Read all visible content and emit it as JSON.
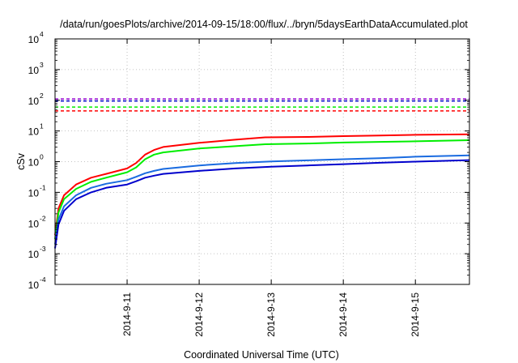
{
  "chart_data": {
    "type": "line",
    "title": "/data/run/goesPlots/archive/2014-09-15/18:00/flux/../bryn/5daysEarthDataAccumulated.plot",
    "xlabel": "Coordinated Universal Time (UTC)",
    "ylabel": "cSv",
    "y_scale": "log",
    "ylim": [
      0.0001,
      10000
    ],
    "xlim": [
      "2014-09-10 00:00",
      "2014-09-15 18:00"
    ],
    "grid": true,
    "legend": "none",
    "x_ticks": [
      "2014-9-11",
      "2014-9-12",
      "2014-9-13",
      "2014-9-14",
      "2014-9-15"
    ],
    "y_ticks": [
      {
        "base": "10",
        "exp": "-4",
        "value": 0.0001
      },
      {
        "base": "10",
        "exp": "-3",
        "value": 0.001
      },
      {
        "base": "10",
        "exp": "-2",
        "value": 0.01
      },
      {
        "base": "10",
        "exp": "-1",
        "value": 0.1
      },
      {
        "base": "10",
        "exp": "0",
        "value": 1
      },
      {
        "base": "10",
        "exp": "1",
        "value": 10
      },
      {
        "base": "10",
        "exp": "2",
        "value": 100
      },
      {
        "base": "10",
        "exp": "3",
        "value": 1000
      },
      {
        "base": "10",
        "exp": "4",
        "value": 10000
      }
    ],
    "series": [
      {
        "color": "#ff0000",
        "style": "solid",
        "points": [
          [
            "2014-09-10 00:00",
            0.004
          ],
          [
            "2014-09-10 01:10",
            0.03
          ],
          [
            "2014-09-10 03:00",
            0.08
          ],
          [
            "2014-09-10 07:00",
            0.18
          ],
          [
            "2014-09-10 12:00",
            0.3
          ],
          [
            "2014-09-10 17:00",
            0.4
          ],
          [
            "2014-09-11 00:00",
            0.6
          ],
          [
            "2014-09-11 03:00",
            0.9
          ],
          [
            "2014-09-11 06:00",
            1.7
          ],
          [
            "2014-09-11 09:00",
            2.4
          ],
          [
            "2014-09-11 12:00",
            3.0
          ],
          [
            "2014-09-12 00:00",
            4.1
          ],
          [
            "2014-09-12 12:00",
            5.2
          ],
          [
            "2014-09-12 22:00",
            6.2
          ],
          [
            "2014-09-13 12:00",
            6.4
          ],
          [
            "2014-09-14 00:00",
            6.8
          ],
          [
            "2014-09-14 12:00",
            7.1
          ],
          [
            "2014-09-15 00:00",
            7.5
          ],
          [
            "2014-09-15 18:00",
            7.8
          ]
        ]
      },
      {
        "color": "#00ee00",
        "style": "solid",
        "points": [
          [
            "2014-09-10 00:00",
            0.003
          ],
          [
            "2014-09-10 01:10",
            0.022
          ],
          [
            "2014-09-10 03:00",
            0.06
          ],
          [
            "2014-09-10 07:00",
            0.13
          ],
          [
            "2014-09-10 12:00",
            0.22
          ],
          [
            "2014-09-10 17:00",
            0.3
          ],
          [
            "2014-09-11 00:00",
            0.45
          ],
          [
            "2014-09-11 03:00",
            0.65
          ],
          [
            "2014-09-11 06:00",
            1.2
          ],
          [
            "2014-09-11 09:00",
            1.7
          ],
          [
            "2014-09-11 12:00",
            2.0
          ],
          [
            "2014-09-12 00:00",
            2.7
          ],
          [
            "2014-09-12 12:00",
            3.2
          ],
          [
            "2014-09-12 22:00",
            3.7
          ],
          [
            "2014-09-13 12:00",
            3.9
          ],
          [
            "2014-09-14 00:00",
            4.2
          ],
          [
            "2014-09-14 12:00",
            4.4
          ],
          [
            "2014-09-15 00:00",
            4.6
          ],
          [
            "2014-09-15 18:00",
            5.0
          ]
        ]
      },
      {
        "color": "#1a6be0",
        "style": "solid",
        "points": [
          [
            "2014-09-10 00:00",
            0.002
          ],
          [
            "2014-09-10 01:10",
            0.013
          ],
          [
            "2014-09-10 03:00",
            0.035
          ],
          [
            "2014-09-10 07:00",
            0.08
          ],
          [
            "2014-09-10 12:00",
            0.14
          ],
          [
            "2014-09-10 17:00",
            0.19
          ],
          [
            "2014-09-11 00:00",
            0.25
          ],
          [
            "2014-09-11 03:00",
            0.32
          ],
          [
            "2014-09-11 06:00",
            0.42
          ],
          [
            "2014-09-11 09:00",
            0.5
          ],
          [
            "2014-09-11 12:00",
            0.58
          ],
          [
            "2014-09-12 00:00",
            0.75
          ],
          [
            "2014-09-12 12:00",
            0.9
          ],
          [
            "2014-09-13 00:00",
            1.02
          ],
          [
            "2014-09-13 12:00",
            1.1
          ],
          [
            "2014-09-14 00:00",
            1.2
          ],
          [
            "2014-09-14 12:00",
            1.3
          ],
          [
            "2014-09-15 00:00",
            1.45
          ],
          [
            "2014-09-15 18:00",
            1.6
          ]
        ]
      },
      {
        "color": "#0000cc",
        "style": "solid",
        "points": [
          [
            "2014-09-10 00:00",
            0.0015
          ],
          [
            "2014-09-10 01:10",
            0.009
          ],
          [
            "2014-09-10 03:00",
            0.025
          ],
          [
            "2014-09-10 07:00",
            0.06
          ],
          [
            "2014-09-10 12:00",
            0.1
          ],
          [
            "2014-09-10 17:00",
            0.14
          ],
          [
            "2014-09-11 00:00",
            0.18
          ],
          [
            "2014-09-11 03:00",
            0.23
          ],
          [
            "2014-09-11 06:00",
            0.3
          ],
          [
            "2014-09-11 09:00",
            0.35
          ],
          [
            "2014-09-11 12:00",
            0.4
          ],
          [
            "2014-09-12 00:00",
            0.5
          ],
          [
            "2014-09-12 12:00",
            0.6
          ],
          [
            "2014-09-13 00:00",
            0.68
          ],
          [
            "2014-09-13 12:00",
            0.75
          ],
          [
            "2014-09-14 00:00",
            0.83
          ],
          [
            "2014-09-14 12:00",
            0.92
          ],
          [
            "2014-09-15 00:00",
            1.0
          ],
          [
            "2014-09-15 18:00",
            1.12
          ]
        ]
      },
      {
        "color": "#ff0000",
        "style": "dashed",
        "constant": 45
      },
      {
        "color": "#00ee00",
        "style": "dashed",
        "constant": 60
      },
      {
        "color": "#0000cc",
        "style": "dashed",
        "constant": 95
      },
      {
        "color": "#9400d3",
        "style": "dashed",
        "constant": 110
      }
    ]
  }
}
